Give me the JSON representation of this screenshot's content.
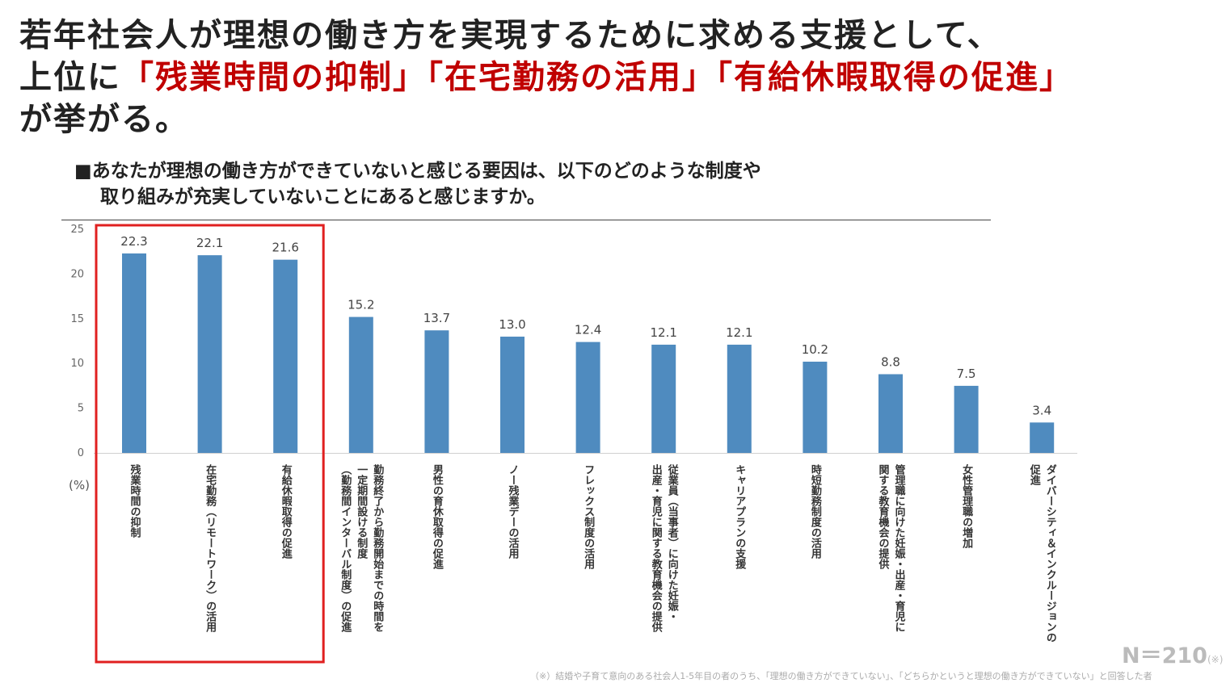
{
  "headline": {
    "line1": "若年社会人が理想の働き方を実現するために求める支援として、",
    "line2_prefix": "上位に",
    "highlight1": "「残業時間の抑制」",
    "highlight2": "「在宅勤務の活用」",
    "highlight3": "「有給休暇取得の促進」",
    "line3": "が挙がる。"
  },
  "question": {
    "line1": "■あなたが理想の働き方ができていないと感じる要因は、以下のどのような制度や",
    "line2": "取り組みが充実していないことにあると感じますか。"
  },
  "colors": {
    "bar": "#4f8bbf",
    "highlight_box": "#e02020",
    "highlight_text": "#c00000"
  },
  "chart_data": {
    "type": "bar",
    "ylabel": "(%)",
    "ylim": [
      0,
      25
    ],
    "yticks": [
      "0",
      "5",
      "10",
      "15",
      "20",
      "25"
    ],
    "highlighted_categories": [
      0,
      1,
      2
    ],
    "categories": [
      [
        "残業時間の抑制"
      ],
      [
        "在宅勤務（リモートワーク）の活用"
      ],
      [
        "有給休暇取得の促進"
      ],
      [
        "勤務終了から勤務開始までの時間を",
        "一定期間設ける制度",
        "（勤務間インターバル制度）の促進"
      ],
      [
        "男性の育休取得の促進"
      ],
      [
        "ノー残業デーの活用"
      ],
      [
        "フレックス制度の活用"
      ],
      [
        "従業員（当事者）に向けた妊娠・",
        "出産・育児に関する教育機会の提供"
      ],
      [
        "キャリアプランの支援"
      ],
      [
        "時短勤務制度の活用"
      ],
      [
        "管理職に向けた妊娠・出産・育児に",
        "関する教育機会の提供"
      ],
      [
        "女性管理職の増加"
      ],
      [
        "ダイバーシティ＆インクルージョンの",
        "促進"
      ]
    ],
    "values": [
      22.3,
      22.1,
      21.6,
      15.2,
      13.7,
      13.0,
      12.4,
      12.1,
      12.1,
      10.2,
      8.8,
      7.5,
      3.4
    ],
    "value_labels": [
      "22.3",
      "22.1",
      "21.6",
      "15.2",
      "13.7",
      "13.0",
      "12.4",
      "12.1",
      "12.1",
      "10.2",
      "8.8",
      "7.5",
      "3.4"
    ]
  },
  "sample_note": {
    "n": "N＝210",
    "mark": "(※)"
  },
  "footnote": "（※）結婚や子育て意向のある社会人1-5年目の者のうち、「理想の働き方ができていない」、「どちらかというと理想の働き方ができていない」と回答した者"
}
